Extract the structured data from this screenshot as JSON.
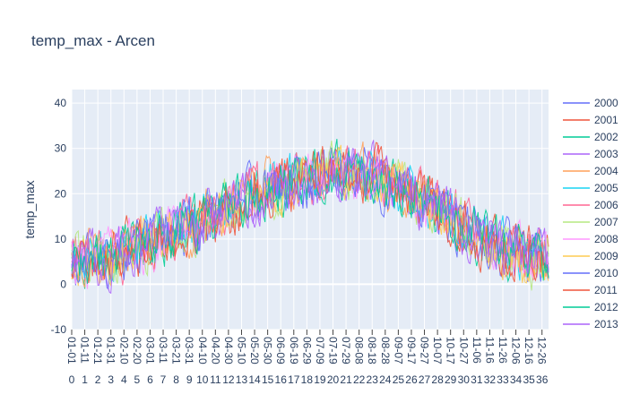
{
  "chart_data": {
    "type": "line",
    "title": "temp_max -  Arcen",
    "xlabel": "",
    "ylabel": "temp_max",
    "ylim": [
      -10,
      43
    ],
    "y_ticks": [
      -10,
      0,
      10,
      20,
      30,
      40
    ],
    "x_domain": [
      "01-01",
      "12-31"
    ],
    "x_tick_labels": [
      "01-01",
      "01-11",
      "01-21",
      "01-31",
      "02-10",
      "02-20",
      "03-01",
      "03-11",
      "03-21",
      "03-31",
      "04-10",
      "04-20",
      "04-30",
      "05-10",
      "05-20",
      "05-30",
      "06-09",
      "06-19",
      "06-29",
      "07-09",
      "07-19",
      "07-29",
      "08-08",
      "08-18",
      "08-28",
      "09-07",
      "09-17",
      "09-27",
      "10-07",
      "10-17",
      "10-27",
      "11-06",
      "11-16",
      "11-26",
      "12-06",
      "12-16",
      "12-26"
    ],
    "x_tick_sublabels": [
      "0",
      "1",
      "2",
      "3",
      "4",
      "5",
      "6",
      "7",
      "8",
      "9",
      "10",
      "11",
      "12",
      "13",
      "14",
      "15",
      "16",
      "17",
      "18",
      "19",
      "20",
      "21",
      "22",
      "23",
      "24",
      "25",
      "26",
      "27",
      "28",
      "29",
      "30",
      "31",
      "32",
      "33",
      "34",
      "35",
      "36"
    ],
    "grid": true,
    "legend_position": "right",
    "seasonal_profile": {
      "day_of_year": [
        0,
        30,
        60,
        90,
        120,
        150,
        180,
        200,
        230,
        260,
        290,
        320,
        350,
        365
      ],
      "typical_temp_max": [
        5,
        6,
        9,
        13,
        17,
        21,
        23,
        25,
        24,
        20,
        15,
        9,
        6,
        5
      ]
    },
    "series": [
      {
        "name": "2000",
        "color": "#636efa"
      },
      {
        "name": "2001",
        "color": "#ef553b"
      },
      {
        "name": "2002",
        "color": "#00cc96"
      },
      {
        "name": "2003",
        "color": "#ab63fa"
      },
      {
        "name": "2004",
        "color": "#ffa15a"
      },
      {
        "name": "2005",
        "color": "#19d3f3"
      },
      {
        "name": "2006",
        "color": "#ff6692"
      },
      {
        "name": "2007",
        "color": "#b6e880"
      },
      {
        "name": "2008",
        "color": "#ff97ff"
      },
      {
        "name": "2009",
        "color": "#fecb52"
      },
      {
        "name": "2010",
        "color": "#636efa"
      },
      {
        "name": "2011",
        "color": "#ef553b"
      },
      {
        "name": "2012",
        "color": "#00cc96"
      },
      {
        "name": "2013",
        "color": "#ab63fa"
      }
    ]
  }
}
